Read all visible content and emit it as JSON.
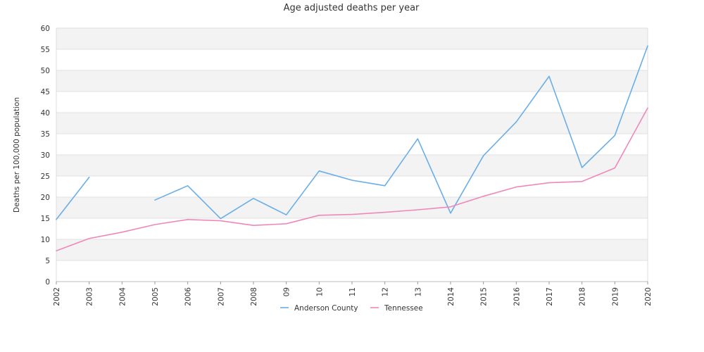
{
  "chart_data": {
    "type": "line",
    "title": "Age adjusted deaths per year",
    "ylabel": "Deaths per 100,000 population",
    "xlabel": "",
    "ylim": [
      0,
      60
    ],
    "yticks": [
      0,
      5,
      10,
      15,
      20,
      25,
      30,
      35,
      40,
      45,
      50,
      55,
      60
    ],
    "categories": [
      "2002",
      "2003",
      "2004",
      "2005",
      "2006",
      "2007",
      "2008",
      "09",
      "10",
      "11",
      "12",
      "13",
      "2014",
      "2015",
      "2016",
      "2017",
      "2018",
      "2019",
      "2020"
    ],
    "grid": "alternating horizontal bands",
    "legend": "bottom-center",
    "series": [
      {
        "name": "Anderson County",
        "color": "#6aaee8",
        "values": [
          14.7,
          24.7,
          null,
          19.3,
          22.7,
          14.9,
          19.7,
          15.8,
          26.2,
          24.0,
          22.7,
          33.8,
          16.2,
          29.8,
          37.8,
          48.6,
          27.0,
          34.6,
          55.8
        ]
      },
      {
        "name": "Tennessee",
        "color": "#ee88bb",
        "values": [
          7.3,
          10.2,
          11.7,
          13.5,
          14.7,
          14.4,
          13.3,
          13.7,
          15.7,
          15.9,
          16.4,
          17.0,
          17.7,
          20.2,
          22.4,
          23.4,
          23.7,
          26.9,
          41.1
        ]
      }
    ]
  }
}
